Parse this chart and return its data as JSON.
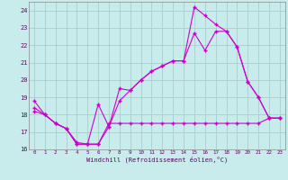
{
  "title": "",
  "xlabel": "Windchill (Refroidissement éolien,°C)",
  "ylabel": "",
  "bg_color": "#c8ecec",
  "line_color": "#cc00cc",
  "grid_color": "#aadddd",
  "xlim": [
    -0.5,
    23.5
  ],
  "ylim": [
    16,
    24.5
  ],
  "xticks": [
    0,
    1,
    2,
    3,
    4,
    5,
    6,
    7,
    8,
    9,
    10,
    11,
    12,
    13,
    14,
    15,
    16,
    17,
    18,
    19,
    20,
    21,
    22,
    23
  ],
  "yticks": [
    16,
    17,
    18,
    19,
    20,
    21,
    22,
    23,
    24
  ],
  "line1_x": [
    0,
    1,
    2,
    3,
    4,
    5,
    6,
    7,
    8,
    9,
    10,
    11,
    12,
    13,
    14,
    15,
    16,
    17,
    18,
    19,
    20,
    21,
    22,
    23
  ],
  "line1_y": [
    18.8,
    18.0,
    17.5,
    17.2,
    16.4,
    16.3,
    16.3,
    17.5,
    17.5,
    17.5,
    17.5,
    17.5,
    17.5,
    17.5,
    17.5,
    17.5,
    17.5,
    17.5,
    17.5,
    17.5,
    17.5,
    17.5,
    17.8,
    17.8
  ],
  "line2_x": [
    0,
    1,
    2,
    3,
    4,
    5,
    6,
    7,
    8,
    9,
    10,
    11,
    12,
    13,
    14,
    15,
    16,
    17,
    18,
    19,
    20,
    21,
    22,
    23
  ],
  "line2_y": [
    18.4,
    18.0,
    17.5,
    17.2,
    16.3,
    16.3,
    18.6,
    17.3,
    19.5,
    19.4,
    20.0,
    20.5,
    20.8,
    21.1,
    21.1,
    22.7,
    21.7,
    22.8,
    22.8,
    21.9,
    19.9,
    19.0,
    17.8,
    17.8
  ],
  "line3_x": [
    0,
    1,
    2,
    3,
    4,
    5,
    6,
    7,
    8,
    9,
    10,
    11,
    12,
    13,
    14,
    15,
    16,
    17,
    18,
    19,
    20,
    21,
    22,
    23
  ],
  "line3_y": [
    18.2,
    18.0,
    17.5,
    17.2,
    16.3,
    16.3,
    16.3,
    17.3,
    18.8,
    19.4,
    20.0,
    20.5,
    20.8,
    21.1,
    21.1,
    24.2,
    23.7,
    23.2,
    22.8,
    21.9,
    19.9,
    19.0,
    17.8,
    17.8
  ]
}
